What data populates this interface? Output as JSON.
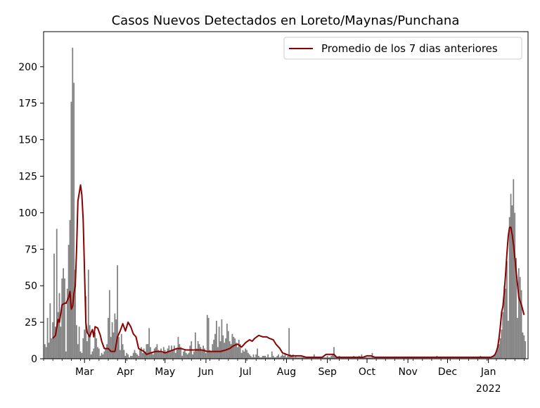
{
  "chart_data": {
    "type": "bar",
    "title": "Casos Nuevos Detectados en Loreto/Maynas/Punchana",
    "xlabel": "",
    "ylabel": "",
    "ylim": [
      0,
      224
    ],
    "xlim": [
      "2021-01-29",
      "2022-01-31"
    ],
    "yticks": [
      0,
      25,
      50,
      75,
      100,
      125,
      150,
      175,
      200
    ],
    "xticks": [
      {
        "date": "2021-03-01",
        "label": "Mar"
      },
      {
        "date": "2021-04-01",
        "label": "Apr"
      },
      {
        "date": "2021-05-01",
        "label": "May"
      },
      {
        "date": "2021-06-01",
        "label": "Jun"
      },
      {
        "date": "2021-07-01",
        "label": "Jul"
      },
      {
        "date": "2021-08-01",
        "label": "Aug"
      },
      {
        "date": "2021-09-01",
        "label": "Sep"
      },
      {
        "date": "2021-10-01",
        "label": "Oct"
      },
      {
        "date": "2021-11-01",
        "label": "Nov"
      },
      {
        "date": "2021-12-01",
        "label": "Dec"
      },
      {
        "date": "2022-01-01",
        "label": "Jan",
        "sublabel": "2022"
      }
    ],
    "grid": false,
    "legend": {
      "placement": "top-right",
      "entries": [
        "Promedio de los 7 dias anteriores"
      ]
    },
    "colors": {
      "bars": "#808080",
      "average_line": "#8b0000"
    },
    "bars_series": {
      "start_date": "2021-01-30",
      "values": [
        10,
        8,
        28,
        11,
        38,
        14,
        25,
        72,
        22,
        89,
        32,
        45,
        22,
        55,
        62,
        55,
        5,
        48,
        78,
        95,
        176,
        213,
        189,
        61,
        23,
        10,
        22,
        5,
        4,
        14,
        20,
        43,
        12,
        61,
        23,
        3,
        5,
        7,
        18,
        14,
        8,
        7,
        2,
        4,
        3,
        5,
        7,
        10,
        28,
        47,
        15,
        25,
        18,
        31,
        27,
        64,
        15,
        6,
        17,
        10,
        6,
        2,
        4,
        3,
        1,
        2,
        2,
        4,
        6,
        4,
        3,
        2,
        6,
        8,
        4,
        7,
        5,
        10,
        10,
        21,
        8,
        4,
        3,
        7,
        8,
        10,
        6,
        5,
        7,
        4,
        8,
        6,
        4,
        7,
        9,
        5,
        9,
        6,
        9,
        4,
        7,
        15,
        10,
        8,
        2,
        5,
        6,
        4,
        3,
        4,
        9,
        12,
        3,
        5,
        18,
        7,
        12,
        10,
        8,
        6,
        9,
        7,
        4,
        30,
        28,
        6,
        5,
        10,
        13,
        17,
        26,
        8,
        22,
        12,
        27,
        16,
        11,
        14,
        24,
        19,
        12,
        10,
        17,
        15,
        14,
        11,
        8,
        13,
        10,
        4,
        6,
        5,
        7,
        6,
        4,
        3,
        2,
        1,
        3,
        1,
        3,
        7,
        2,
        1,
        1,
        2,
        2,
        2,
        1,
        3,
        1,
        1,
        5,
        2,
        1,
        1,
        2,
        3,
        1,
        2,
        3,
        2,
        4,
        1,
        2,
        21,
        3,
        2,
        3,
        1,
        2,
        1,
        1,
        1,
        1,
        1,
        2,
        1,
        1,
        1,
        1,
        1,
        1,
        1,
        3,
        1,
        1,
        1,
        1,
        1,
        1,
        1,
        1,
        1,
        2,
        1,
        1,
        2,
        3,
        8,
        2,
        1,
        1,
        2,
        1,
        1,
        1,
        1,
        1,
        1,
        1,
        1,
        1,
        1,
        2,
        1,
        1,
        1,
        2,
        1,
        3,
        1,
        1,
        1,
        1,
        1,
        1,
        1,
        4,
        1,
        1,
        1,
        1,
        1,
        1,
        1,
        1,
        1,
        1,
        1,
        1,
        1,
        1,
        1,
        1,
        1,
        1,
        1,
        1,
        1,
        1,
        1,
        1,
        1,
        1,
        1,
        1,
        1,
        1,
        1,
        1,
        1,
        1,
        1,
        1,
        1,
        1,
        1,
        1,
        1,
        1,
        1,
        1,
        1,
        1,
        1,
        1,
        2,
        1,
        1,
        1,
        1,
        1,
        1,
        1,
        1,
        1,
        1,
        1,
        1,
        1,
        1,
        1,
        1,
        1,
        1,
        1,
        1,
        1,
        1,
        1,
        1,
        1,
        1,
        1,
        1,
        1,
        1,
        1,
        1,
        2,
        1,
        1,
        1,
        1,
        1,
        1,
        1,
        1,
        2,
        2,
        3,
        5,
        8,
        10,
        14,
        20,
        32,
        50,
        48,
        67,
        26,
        97,
        113,
        105,
        123,
        100,
        69,
        28,
        62,
        56,
        47,
        18,
        16,
        12
      ]
    },
    "series": [
      {
        "name": "Promedio de los 7 dias anteriores",
        "points": [
          [
            "2021-02-05",
            14
          ],
          [
            "2021-02-07",
            16
          ],
          [
            "2021-02-09",
            27
          ],
          [
            "2021-02-10",
            25
          ],
          [
            "2021-02-12",
            37
          ],
          [
            "2021-02-14",
            38
          ],
          [
            "2021-02-15",
            38
          ],
          [
            "2021-02-17",
            42
          ],
          [
            "2021-02-18",
            46
          ],
          [
            "2021-02-19",
            34
          ],
          [
            "2021-02-20",
            36
          ],
          [
            "2021-02-21",
            45
          ],
          [
            "2021-02-22",
            50
          ],
          [
            "2021-02-23",
            75
          ],
          [
            "2021-02-24",
            108
          ],
          [
            "2021-02-26",
            119
          ],
          [
            "2021-02-27",
            112
          ],
          [
            "2021-02-28",
            95
          ],
          [
            "2021-03-01",
            60
          ],
          [
            "2021-03-02",
            25
          ],
          [
            "2021-03-03",
            18
          ],
          [
            "2021-03-05",
            15
          ],
          [
            "2021-03-06",
            18
          ],
          [
            "2021-03-07",
            20
          ],
          [
            "2021-03-08",
            15
          ],
          [
            "2021-03-09",
            22
          ],
          [
            "2021-03-11",
            21
          ],
          [
            "2021-03-13",
            16
          ],
          [
            "2021-03-14",
            12
          ],
          [
            "2021-03-16",
            7
          ],
          [
            "2021-03-19",
            7
          ],
          [
            "2021-03-21",
            5
          ],
          [
            "2021-03-24",
            5
          ],
          [
            "2021-03-26",
            15
          ],
          [
            "2021-03-28",
            19
          ],
          [
            "2021-03-30",
            24
          ],
          [
            "2021-04-01",
            19
          ],
          [
            "2021-04-03",
            25
          ],
          [
            "2021-04-05",
            22
          ],
          [
            "2021-04-07",
            17
          ],
          [
            "2021-04-09",
            15
          ],
          [
            "2021-04-11",
            7
          ],
          [
            "2021-04-13",
            6
          ],
          [
            "2021-04-15",
            5
          ],
          [
            "2021-04-17",
            3
          ],
          [
            "2021-04-20",
            4
          ],
          [
            "2021-04-24",
            5
          ],
          [
            "2021-04-28",
            5
          ],
          [
            "2021-05-01",
            4
          ],
          [
            "2021-05-04",
            5
          ],
          [
            "2021-05-07",
            6
          ],
          [
            "2021-05-10",
            7
          ],
          [
            "2021-05-13",
            7
          ],
          [
            "2021-05-17",
            6
          ],
          [
            "2021-05-21",
            6
          ],
          [
            "2021-05-25",
            6
          ],
          [
            "2021-05-29",
            6
          ],
          [
            "2021-06-02",
            5
          ],
          [
            "2021-06-06",
            5
          ],
          [
            "2021-06-09",
            5
          ],
          [
            "2021-06-12",
            5
          ],
          [
            "2021-06-16",
            6
          ],
          [
            "2021-06-19",
            7
          ],
          [
            "2021-06-22",
            9
          ],
          [
            "2021-06-25",
            10
          ],
          [
            "2021-06-28",
            8
          ],
          [
            "2021-07-01",
            11
          ],
          [
            "2021-07-04",
            13
          ],
          [
            "2021-07-06",
            12
          ],
          [
            "2021-07-08",
            14
          ],
          [
            "2021-07-11",
            16
          ],
          [
            "2021-07-14",
            15
          ],
          [
            "2021-07-17",
            15
          ],
          [
            "2021-07-19",
            14
          ],
          [
            "2021-07-22",
            13
          ],
          [
            "2021-07-24",
            10
          ],
          [
            "2021-07-27",
            7
          ],
          [
            "2021-07-29",
            4
          ],
          [
            "2021-08-01",
            3
          ],
          [
            "2021-08-04",
            2
          ],
          [
            "2021-08-08",
            2
          ],
          [
            "2021-08-12",
            2
          ],
          [
            "2021-08-16",
            1
          ],
          [
            "2021-08-20",
            1
          ],
          [
            "2021-08-24",
            1
          ],
          [
            "2021-08-28",
            1
          ],
          [
            "2021-08-31",
            3
          ],
          [
            "2021-09-03",
            3
          ],
          [
            "2021-09-06",
            3
          ],
          [
            "2021-09-08",
            1
          ],
          [
            "2021-09-12",
            1
          ],
          [
            "2021-09-16",
            1
          ],
          [
            "2021-09-20",
            1
          ],
          [
            "2021-09-24",
            1
          ],
          [
            "2021-09-28",
            1
          ],
          [
            "2021-10-01",
            2
          ],
          [
            "2021-10-04",
            2
          ],
          [
            "2021-10-07",
            1
          ],
          [
            "2021-10-11",
            1
          ],
          [
            "2021-10-15",
            1
          ],
          [
            "2021-10-19",
            1
          ],
          [
            "2021-10-23",
            1
          ],
          [
            "2021-10-27",
            1
          ],
          [
            "2021-10-31",
            1
          ],
          [
            "2021-11-04",
            1
          ],
          [
            "2021-11-08",
            1
          ],
          [
            "2021-11-12",
            1
          ],
          [
            "2021-11-16",
            1
          ],
          [
            "2021-11-20",
            1
          ],
          [
            "2021-11-24",
            1
          ],
          [
            "2021-11-28",
            1
          ],
          [
            "2021-12-02",
            1
          ],
          [
            "2021-12-06",
            1
          ],
          [
            "2021-12-10",
            1
          ],
          [
            "2021-12-14",
            1
          ],
          [
            "2021-12-18",
            1
          ],
          [
            "2021-12-22",
            1
          ],
          [
            "2021-12-26",
            1
          ],
          [
            "2021-12-29",
            1
          ],
          [
            "2022-01-01",
            1
          ],
          [
            "2022-01-03",
            1
          ],
          [
            "2022-01-05",
            2
          ],
          [
            "2022-01-06",
            3
          ],
          [
            "2022-01-07",
            5
          ],
          [
            "2022-01-08",
            8
          ],
          [
            "2022-01-09",
            14
          ],
          [
            "2022-01-10",
            22
          ],
          [
            "2022-01-11",
            32
          ],
          [
            "2022-01-12",
            36
          ],
          [
            "2022-01-13",
            46
          ],
          [
            "2022-01-14",
            58
          ],
          [
            "2022-01-15",
            72
          ],
          [
            "2022-01-16",
            84
          ],
          [
            "2022-01-17",
            90
          ],
          [
            "2022-01-18",
            90
          ],
          [
            "2022-01-19",
            85
          ],
          [
            "2022-01-20",
            78
          ],
          [
            "2022-01-22",
            60
          ],
          [
            "2022-01-24",
            42
          ],
          [
            "2022-01-26",
            37
          ],
          [
            "2022-01-28",
            30
          ]
        ]
      }
    ]
  }
}
